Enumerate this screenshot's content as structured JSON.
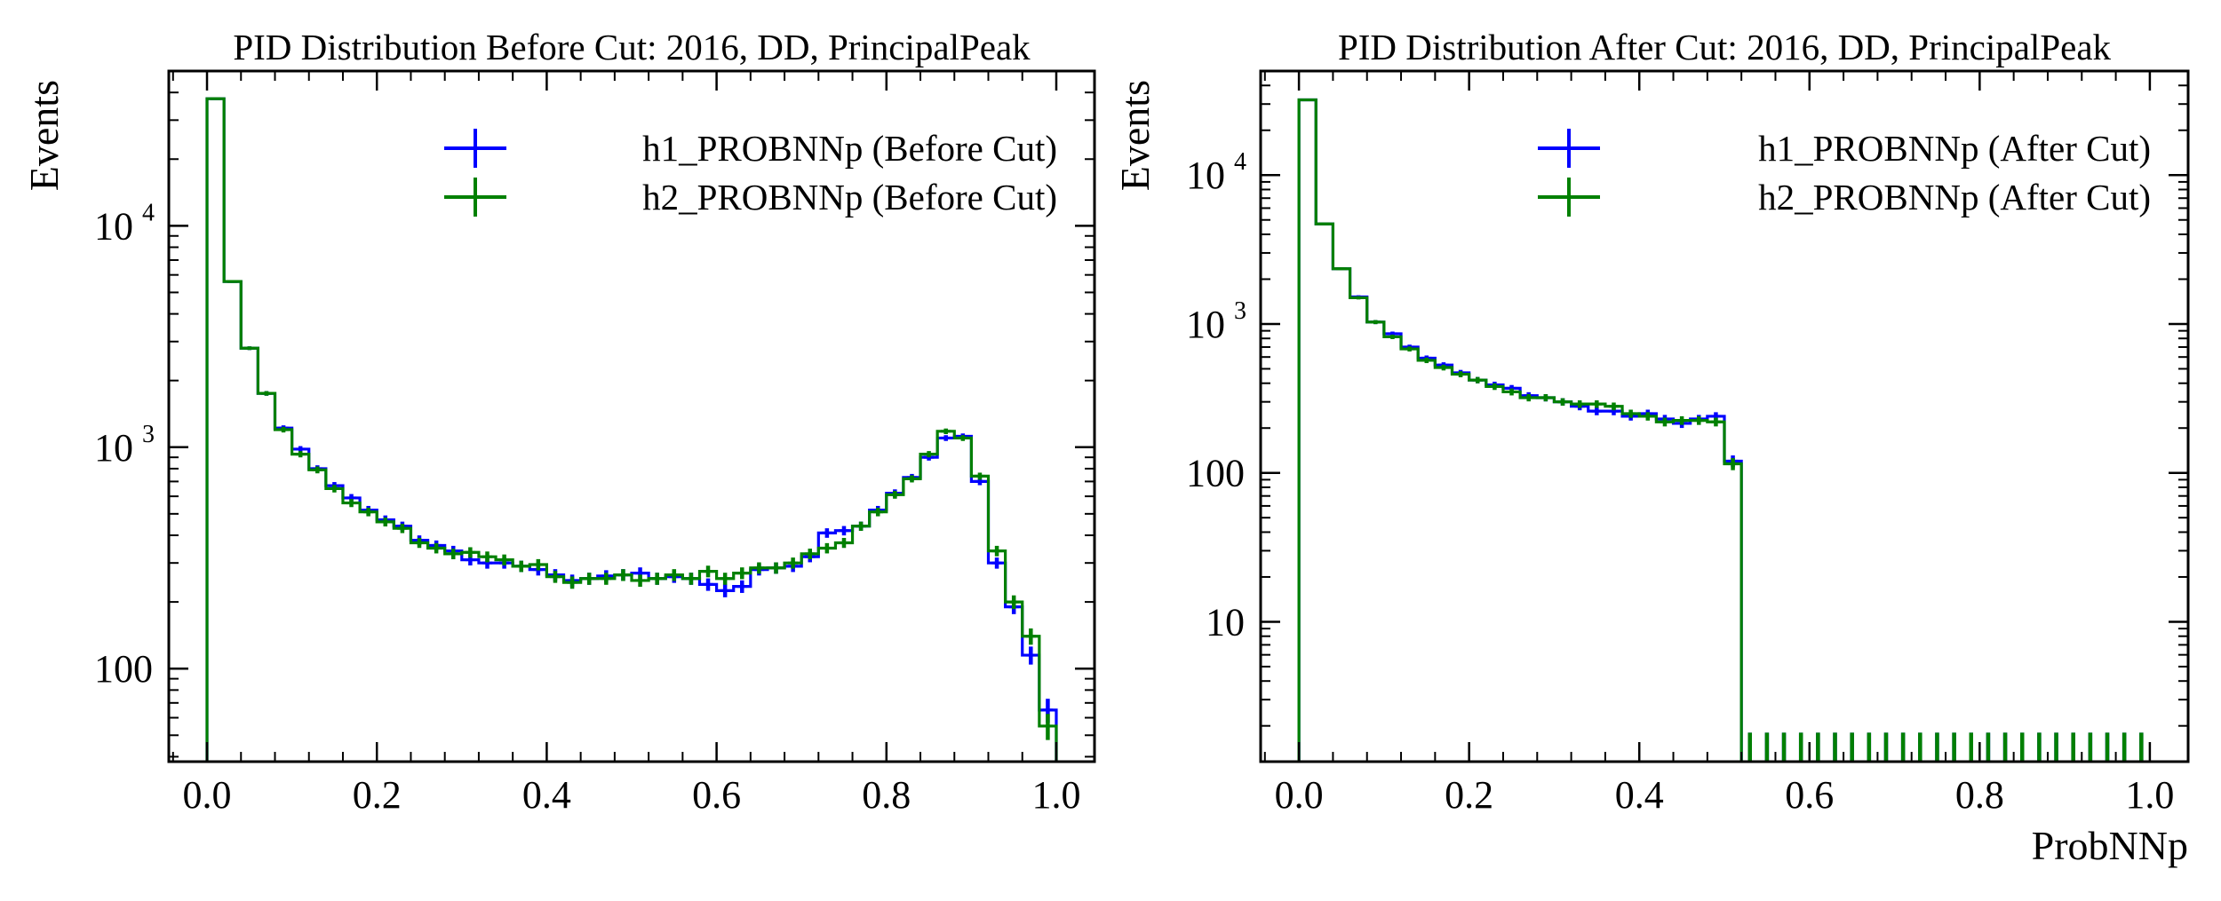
{
  "chart_data": [
    {
      "type": "step-histogram",
      "title": "PID Distribution Before Cut: 2016, DD, PrincipalPeak",
      "xlabel": "",
      "ylabel": "Events",
      "xlim": [
        -0.045,
        1.045
      ],
      "ylim": [
        38,
        50000
      ],
      "yscale": "log",
      "xticks": [
        0.0,
        0.2,
        0.4,
        0.6,
        0.8,
        1.0
      ],
      "xtick_labels": [
        "0.0",
        "0.2",
        "0.4",
        "0.6",
        "0.8",
        "1.0"
      ],
      "yticks": [
        {
          "value": 100,
          "base": "100",
          "exp": ""
        },
        {
          "value": 1000,
          "base": "10",
          "exp": "3"
        },
        {
          "value": 10000,
          "base": "10",
          "exp": "4"
        }
      ],
      "legend_location": "top-right",
      "bin_edges": [
        0,
        0.02,
        0.04,
        0.06,
        0.08,
        0.1,
        0.12,
        0.14,
        0.16,
        0.18,
        0.2,
        0.22,
        0.24,
        0.26,
        0.28,
        0.3,
        0.32,
        0.34,
        0.36,
        0.38,
        0.4,
        0.42,
        0.44,
        0.46,
        0.48,
        0.5,
        0.52,
        0.54,
        0.56,
        0.58,
        0.6,
        0.62,
        0.64,
        0.66,
        0.68,
        0.7,
        0.72,
        0.74,
        0.76,
        0.78,
        0.8,
        0.82,
        0.84,
        0.86,
        0.88,
        0.9,
        0.92,
        0.94,
        0.96,
        0.98,
        1.0
      ],
      "series": [
        {
          "name": "h1_PROBNNp (Before Cut)",
          "color": "#0000ff",
          "values": [
            37500,
            5600,
            2800,
            1750,
            1220,
            980,
            800,
            670,
            590,
            520,
            470,
            440,
            380,
            360,
            340,
            310,
            300,
            300,
            290,
            280,
            265,
            250,
            255,
            262,
            265,
            270,
            255,
            260,
            255,
            240,
            225,
            235,
            280,
            285,
            290,
            320,
            410,
            420,
            440,
            520,
            620,
            730,
            900,
            1100,
            1120,
            700,
            300,
            190,
            115,
            65
          ]
        },
        {
          "name": "h2_PROBNNp (Before Cut)",
          "color": "#008000",
          "values": [
            37500,
            5600,
            2800,
            1750,
            1200,
            930,
            790,
            650,
            560,
            510,
            460,
            430,
            370,
            350,
            330,
            335,
            320,
            310,
            290,
            295,
            260,
            245,
            255,
            255,
            265,
            250,
            255,
            265,
            255,
            275,
            255,
            270,
            285,
            285,
            300,
            330,
            350,
            370,
            440,
            510,
            610,
            720,
            930,
            1180,
            1100,
            740,
            340,
            200,
            140,
            55
          ]
        }
      ]
    },
    {
      "type": "step-histogram",
      "title": "PID Distribution After Cut: 2016, DD, PrincipalPeak",
      "xlabel": "ProbNNp",
      "ylabel": "Events",
      "xlim": [
        -0.045,
        1.045
      ],
      "ylim": [
        1.15,
        50000
      ],
      "yscale": "log",
      "xticks": [
        0.0,
        0.2,
        0.4,
        0.6,
        0.8,
        1.0
      ],
      "xtick_labels": [
        "0.0",
        "0.2",
        "0.4",
        "0.6",
        "0.8",
        "1.0"
      ],
      "yticks": [
        {
          "value": 10,
          "base": "10",
          "exp": ""
        },
        {
          "value": 100,
          "base": "100",
          "exp": ""
        },
        {
          "value": 1000,
          "base": "10",
          "exp": "3"
        },
        {
          "value": 10000,
          "base": "10",
          "exp": "4"
        }
      ],
      "legend_location": "top-right",
      "bin_edges": [
        0,
        0.02,
        0.04,
        0.06,
        0.08,
        0.1,
        0.12,
        0.14,
        0.16,
        0.18,
        0.2,
        0.22,
        0.24,
        0.26,
        0.28,
        0.3,
        0.32,
        0.34,
        0.36,
        0.38,
        0.4,
        0.42,
        0.44,
        0.46,
        0.48,
        0.5,
        0.52,
        0.54,
        0.56,
        0.58,
        0.6,
        0.62,
        0.64,
        0.66,
        0.68,
        0.7,
        0.72,
        0.74,
        0.76,
        0.78,
        0.8,
        0.82,
        0.84,
        0.86,
        0.88,
        0.9,
        0.92,
        0.94,
        0.96,
        0.98,
        1.0
      ],
      "empty_bin_error_upper": 1.8,
      "series": [
        {
          "name": "h1_PROBNNp (After Cut)",
          "color": "#0000ff",
          "values": [
            32000,
            4700,
            2350,
            1520,
            1030,
            860,
            700,
            590,
            530,
            470,
            420,
            390,
            370,
            330,
            320,
            300,
            280,
            260,
            260,
            240,
            250,
            230,
            215,
            230,
            240,
            120,
            0,
            0,
            0,
            0,
            0,
            0,
            0,
            0,
            0,
            0,
            0,
            0,
            0,
            0,
            0,
            0,
            0,
            0,
            0,
            0,
            0,
            0,
            0,
            0
          ]
        },
        {
          "name": "h2_PROBNNp (After Cut)",
          "color": "#008000",
          "values": [
            32000,
            4700,
            2350,
            1500,
            1030,
            820,
            680,
            570,
            510,
            460,
            420,
            380,
            350,
            320,
            320,
            300,
            290,
            290,
            280,
            250,
            240,
            220,
            225,
            225,
            220,
            115,
            0,
            0,
            0,
            0,
            0,
            0,
            0,
            0,
            0,
            0,
            0,
            0,
            0,
            0,
            0,
            0,
            0,
            0,
            0,
            0,
            0,
            0,
            0,
            0
          ]
        }
      ]
    }
  ]
}
